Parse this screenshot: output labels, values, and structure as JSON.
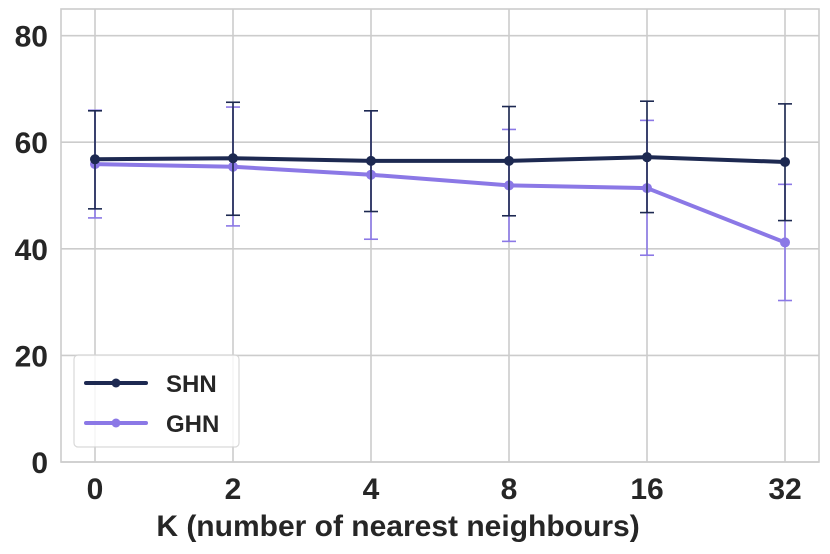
{
  "chart_data": {
    "type": "line",
    "title": "",
    "xlabel": "K (number of nearest neighbours)",
    "ylabel": "",
    "categories": [
      "0",
      "2",
      "4",
      "8",
      "16",
      "32"
    ],
    "ylim": [
      0,
      85
    ],
    "yticks": [
      "0",
      "20",
      "40",
      "60",
      "80"
    ],
    "grid": true,
    "legend_position": "bottom-left",
    "series": [
      {
        "name": "SHN",
        "color": "#1d2951",
        "values": [
          56.8,
          57.0,
          56.5,
          56.5,
          57.2,
          56.3
        ],
        "err_low": [
          47.5,
          46.3,
          47.0,
          46.2,
          46.8,
          45.3
        ],
        "err_high": [
          65.9,
          67.5,
          65.9,
          66.7,
          67.7,
          67.2
        ]
      },
      {
        "name": "GHN",
        "color": "#8b78e6",
        "values": [
          55.9,
          55.4,
          53.9,
          51.9,
          51.4,
          41.2
        ],
        "err_low": [
          45.8,
          44.3,
          41.8,
          41.4,
          38.8,
          30.3
        ],
        "err_high": [
          66.0,
          66.6,
          65.9,
          62.4,
          64.1,
          52.1
        ]
      }
    ]
  }
}
